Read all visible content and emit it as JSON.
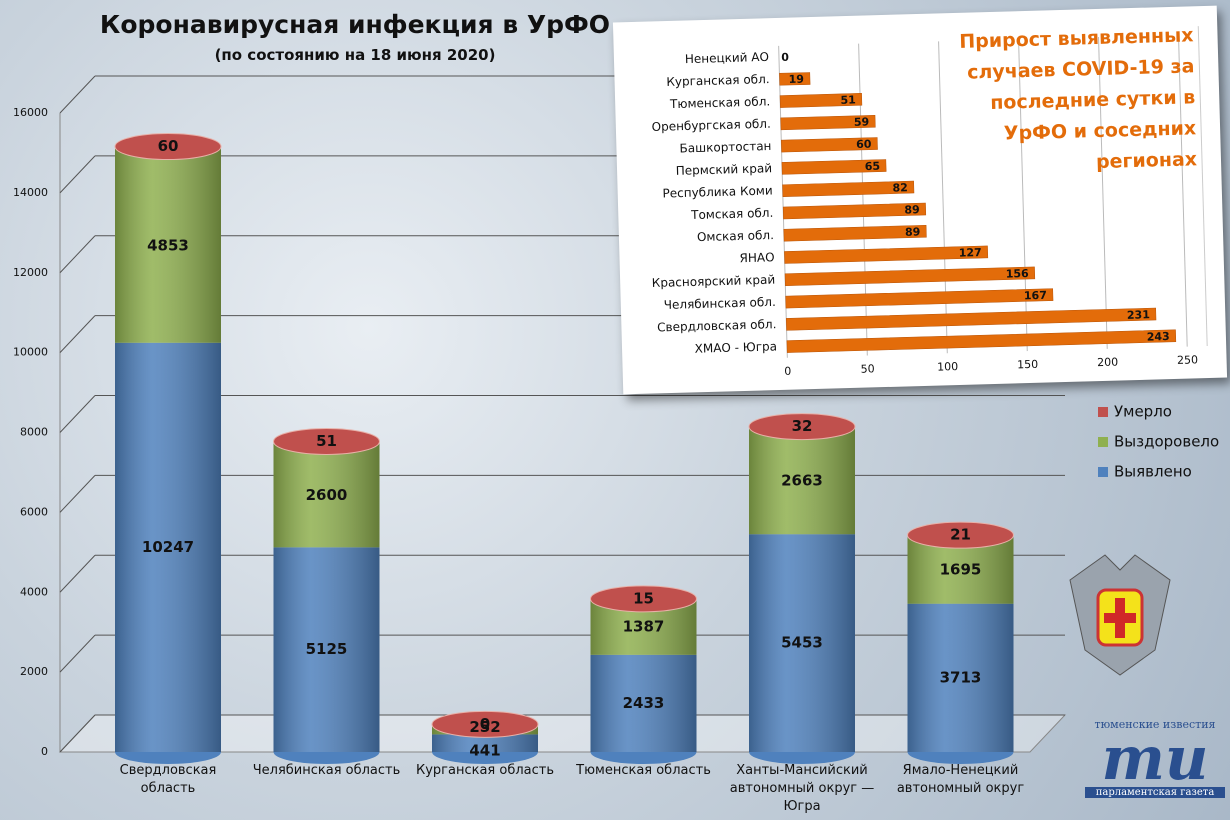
{
  "chart_data": [
    {
      "type": "stacked-bar",
      "title": "Коронавирусная инфекция в УрФО",
      "subtitle": "(по состоянию на 18 июня 2020)",
      "categories": [
        "Свердловская область",
        "Челябинская область",
        "Курганская область",
        "Тюменская область",
        "Ханты-Мансийский автономный округ — Югра",
        "Ямало-Ненецкий автономный округ"
      ],
      "series": [
        {
          "name": "Выявлено",
          "color": "#4f81bd",
          "values": [
            10247,
            5125,
            441,
            2433,
            5453,
            3713
          ]
        },
        {
          "name": "Выздоровело",
          "color": "#8fb04f",
          "values": [
            4853,
            2600,
            252,
            1387,
            2663,
            1695
          ]
        },
        {
          "name": "Умерло",
          "color": "#c0504d",
          "values": [
            60,
            51,
            0,
            15,
            32,
            21
          ]
        }
      ],
      "ylim": [
        0,
        16000
      ],
      "yticks": [
        0,
        2000,
        4000,
        6000,
        8000,
        10000,
        12000,
        14000,
        16000
      ],
      "grid": true,
      "legend": "right"
    },
    {
      "type": "hbar",
      "title": "Прирост выявленных случаев COVID-19 за последние сутки в УрФО и соседних регионах",
      "categories": [
        "Ненецкий АО",
        "Курганская обл.",
        "Тюменская обл.",
        "Оренбургская обл.",
        "Башкортостан",
        "Пермский край",
        "Республика Коми",
        "Томская обл.",
        "Омская обл.",
        "ЯНАО",
        "Красноярский край",
        "Челябинская обл.",
        "Свердловская обл.",
        "ХМАО - Югра"
      ],
      "values": [
        0,
        19,
        51,
        59,
        60,
        65,
        82,
        89,
        89,
        127,
        156,
        167,
        231,
        243
      ],
      "color": "#e36c0a",
      "xlim": [
        0,
        250
      ],
      "xticks": [
        0,
        50,
        100,
        150,
        200,
        250
      ],
      "grid": true
    }
  ],
  "logo": {
    "top": "тюменские известия",
    "mark": "ти",
    "bottom": "парламентская газета"
  }
}
